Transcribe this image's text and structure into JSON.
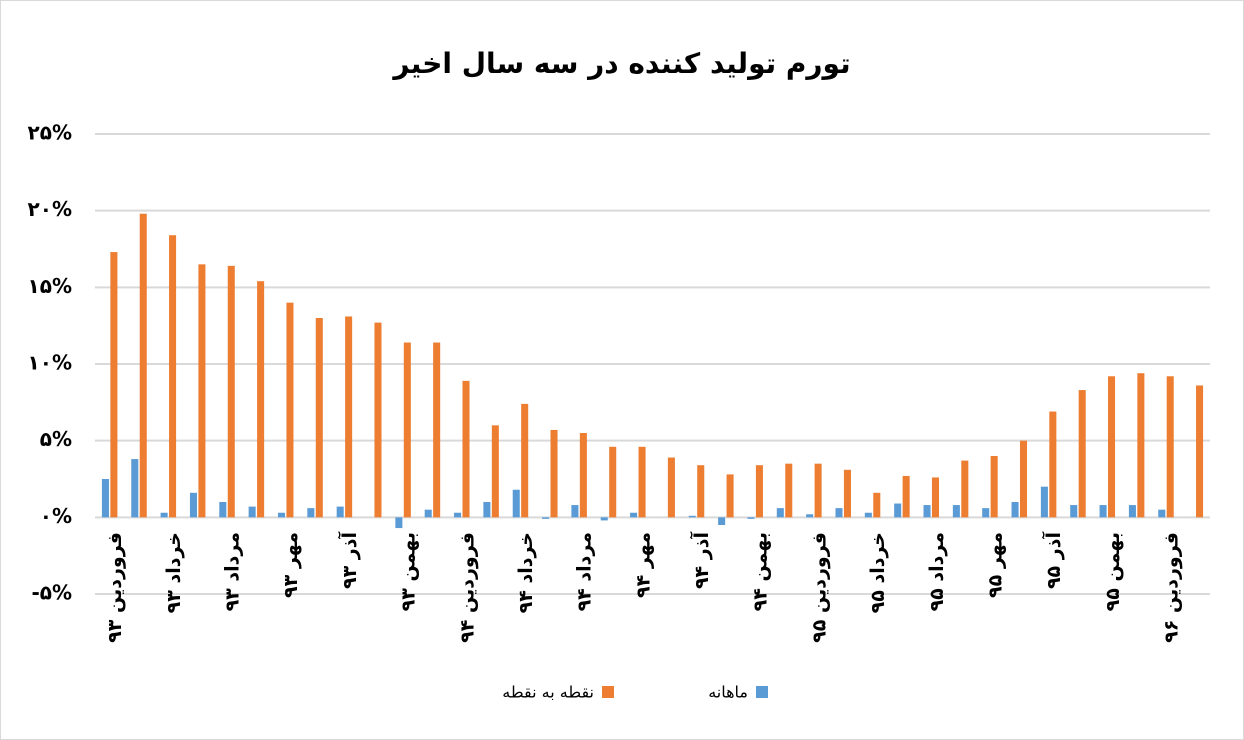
{
  "chart_data": {
    "type": "bar",
    "title": "تورم تولید کننده در سه سال اخیر",
    "categories": [
      "فروردین ۹۳",
      null,
      "خرداد ۹۳",
      null,
      "مرداد ۹۳",
      null,
      "مهر ۹۳",
      null,
      "آذر ۹۳",
      null,
      "بهمن ۹۳",
      null,
      "فروردین ۹۴",
      null,
      "خرداد ۹۴",
      null,
      "مرداد ۹۴",
      null,
      "مهر ۹۴",
      null,
      "آذر ۹۴",
      null,
      "بهمن ۹۴",
      null,
      "فروردین ۹۵",
      null,
      "خرداد ۹۵",
      null,
      "مرداد ۹۵",
      null,
      "مهر ۹۵",
      null,
      "آذر ۹۵",
      null,
      "بهمن ۹۵",
      null,
      "فروردین ۹۶",
      null
    ],
    "series": [
      {
        "name": "ماهانه",
        "color": "#5b9bd5",
        "values": [
          2.5,
          3.8,
          0.3,
          1.6,
          1.0,
          0.7,
          0.3,
          0.6,
          0.7,
          0.0,
          -0.7,
          0.5,
          0.3,
          1.0,
          1.8,
          -0.1,
          0.8,
          -0.2,
          0.3,
          0.0,
          0.1,
          -0.5,
          -0.1,
          0.6,
          0.2,
          0.6,
          0.3,
          0.9,
          0.8,
          0.8,
          0.6,
          1.0,
          2.0,
          0.8,
          0.8,
          0.8,
          0.5,
          0.0
        ]
      },
      {
        "name": "نقطه به نقطه",
        "color": "#ed7d31",
        "values": [
          17.3,
          19.8,
          18.4,
          16.5,
          16.4,
          15.4,
          14.0,
          13.0,
          13.1,
          12.7,
          11.4,
          11.4,
          8.9,
          6.0,
          7.4,
          5.7,
          5.5,
          4.6,
          4.6,
          3.9,
          3.4,
          2.8,
          3.4,
          3.5,
          3.5,
          3.1,
          1.6,
          2.7,
          2.6,
          3.7,
          4.0,
          5.0,
          6.9,
          8.3,
          9.2,
          9.4,
          9.2,
          8.6
        ]
      }
    ],
    "ylim": [
      -5,
      25
    ],
    "yticks": [
      {
        "value": -5,
        "label": "-۵%"
      },
      {
        "value": 0,
        "label": "۰%"
      },
      {
        "value": 5,
        "label": "۵%"
      },
      {
        "value": 10,
        "label": "۱۰%"
      },
      {
        "value": 15,
        "label": "۱۵%"
      },
      {
        "value": 20,
        "label": "۲۰%"
      },
      {
        "value": 25,
        "label": "۲۵%"
      }
    ],
    "grid": true,
    "legend": "bottom"
  }
}
